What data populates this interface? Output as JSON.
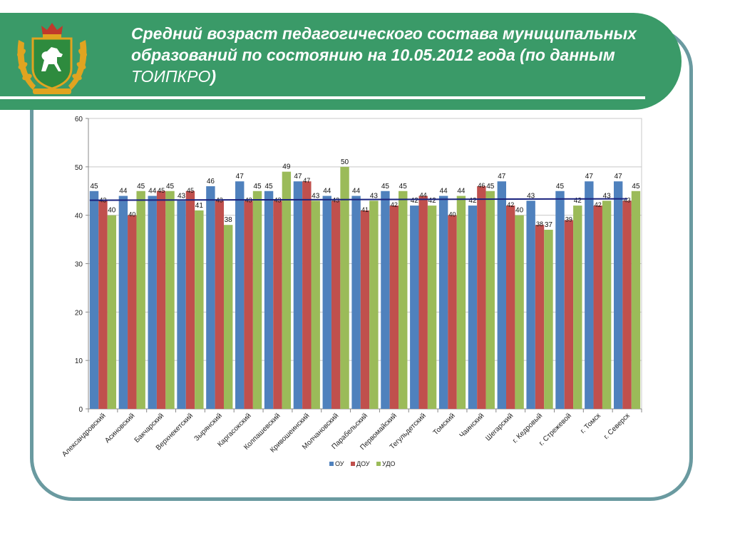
{
  "slide": {
    "title_main": "Средний возраст педагогического состава муниципальных образований по состоянию на 10.05.2012 года (по данным ",
    "title_source": "ТОИПКРО",
    "title_end": ")"
  },
  "emblem": {
    "icon": "tomsk-coat-of-arms-icon",
    "colors": {
      "shield": "#2e8b3e",
      "horse": "#ffffff",
      "gold": "#e0a420",
      "crown": "#c0392b"
    }
  },
  "colors": {
    "banner": "#3a9a68",
    "frame": "#6a9aa0",
    "average_line": "#1a237e"
  },
  "chart_data": {
    "type": "bar",
    "categories": [
      "Александровский",
      "Асиновский",
      "Бакчарский",
      "Верхнекетский",
      "Зырянский",
      "Каргасокский",
      "Колпашевский",
      "Кривошеинский",
      "Молчановский",
      "Парабельский",
      "Первомайский",
      "Тегульдетский",
      "Томский",
      "Чаинский",
      "Шегарский",
      "г. Кедровый",
      "г. Стрежевой",
      "г. Томск",
      "г. Северск"
    ],
    "series": [
      {
        "name": "ОУ",
        "color": "#4f81bd",
        "values": [
          45,
          44,
          44,
          43,
          46,
          47,
          45,
          47,
          44,
          44,
          45,
          42,
          44,
          42,
          47,
          43,
          45,
          47,
          47
        ]
      },
      {
        "name": "ДОУ",
        "color": "#c0504d",
        "values": [
          43,
          40,
          45,
          45,
          43,
          43,
          43,
          47,
          43,
          41,
          42,
          44,
          40,
          46,
          42,
          38,
          39,
          42,
          43
        ]
      },
      {
        "name": "УДО",
        "color": "#9bbb59",
        "values": [
          40,
          45,
          45,
          41,
          38,
          45,
          49,
          43,
          50,
          43,
          45,
          42,
          44,
          45,
          40,
          37,
          42,
          43,
          45
        ]
      }
    ],
    "average_line": {
      "start": 43.1,
      "end": 43.4
    },
    "y_ticks": [
      "0",
      "10",
      "20",
      "30",
      "40",
      "50",
      "60"
    ],
    "ylim": [
      0,
      60
    ],
    "grid": "horizontal",
    "legend_position": "bottom",
    "data_labels": true
  }
}
